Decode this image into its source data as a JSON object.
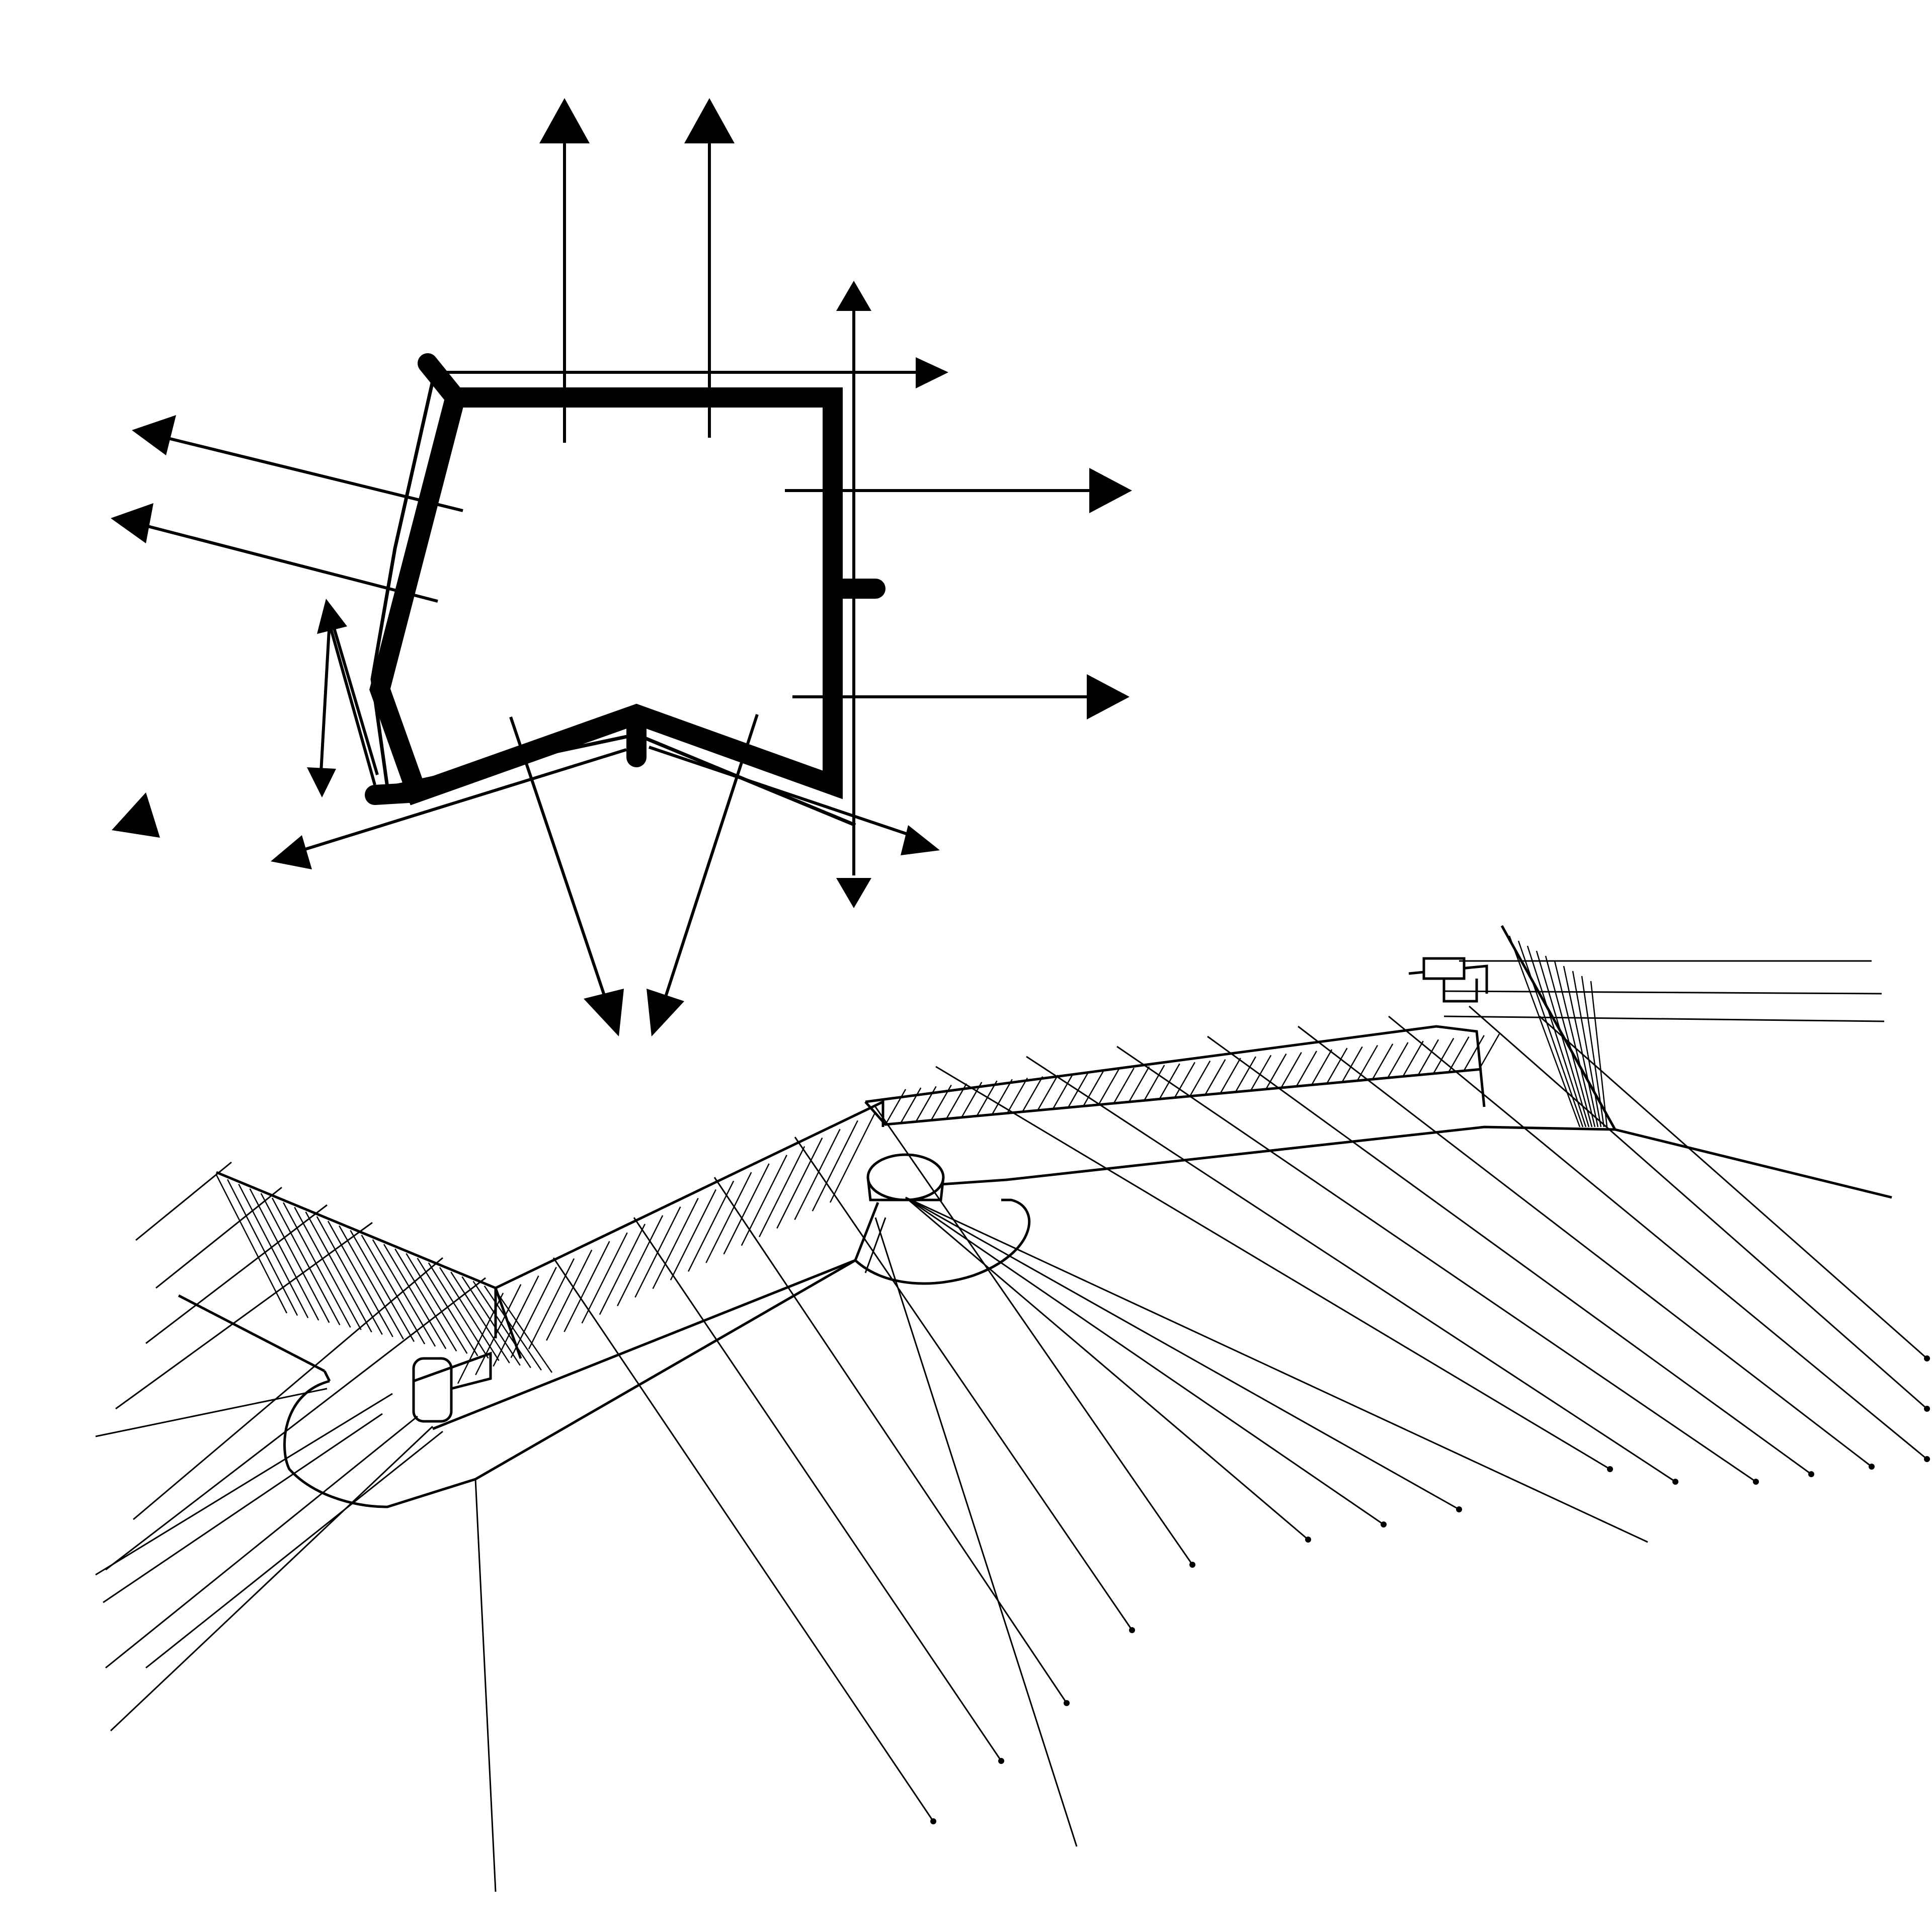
{
  "figure": {
    "ink_color": "#000000",
    "paper_color": "#ffffff",
    "plan_diagram": {
      "description_hidden": true,
      "fire_direction_arrows": 15,
      "wall_segments": 5
    },
    "isometric_view": {
      "wall_hatching": true,
      "firing_rays": true,
      "bastions": 3
    }
  }
}
